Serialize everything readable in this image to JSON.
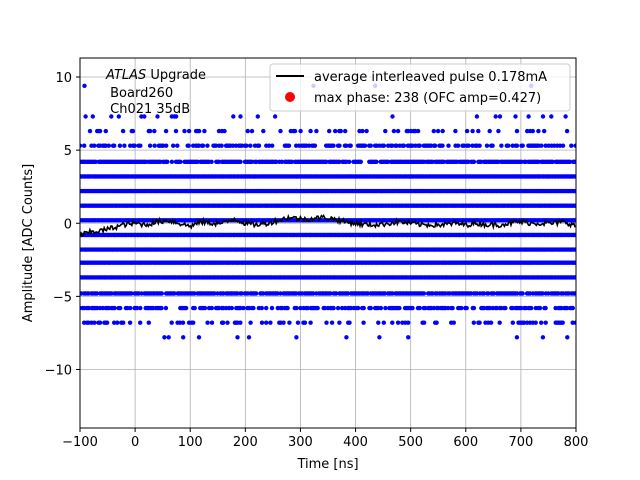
{
  "chart_data": {
    "type": "scatter",
    "title": "",
    "xlabel": "Time [ns]",
    "ylabel": "Amplitude [ADC Counts]",
    "xlim": [
      -100,
      800
    ],
    "ylim": [
      -14,
      11.3
    ],
    "xticks": [
      -100,
      0,
      100,
      200,
      300,
      400,
      500,
      600,
      700,
      800
    ],
    "yticks": [
      -10,
      -5,
      0,
      5,
      10
    ],
    "grid": true,
    "legend_position": "top-right",
    "annotation": {
      "line1_italic": "ATLAS",
      "line1_rest": " Upgrade",
      "line2": " Board260",
      "line3": " Ch021 35dB"
    },
    "series": [
      {
        "name": "average interleaved pulse 0.178mA",
        "kind": "line",
        "color": "#000000",
        "points": [
          [
            -100,
            -0.8
          ],
          [
            -80,
            -0.6
          ],
          [
            -60,
            -0.5
          ],
          [
            -40,
            -0.3
          ],
          [
            -20,
            -0.1
          ],
          [
            0,
            0.0
          ],
          [
            20,
            -0.1
          ],
          [
            40,
            0.1
          ],
          [
            60,
            0.2
          ],
          [
            80,
            0.0
          ],
          [
            100,
            -0.2
          ],
          [
            120,
            0.1
          ],
          [
            140,
            0.0
          ],
          [
            160,
            0.0
          ],
          [
            180,
            0.3
          ],
          [
            200,
            0.0
          ],
          [
            220,
            -0.1
          ],
          [
            240,
            0.0
          ],
          [
            260,
            0.2
          ],
          [
            280,
            0.4
          ],
          [
            300,
            0.3
          ],
          [
            320,
            0.3
          ],
          [
            340,
            0.4
          ],
          [
            360,
            0.3
          ],
          [
            380,
            0.1
          ],
          [
            400,
            0.0
          ],
          [
            420,
            -0.1
          ],
          [
            440,
            -0.1
          ],
          [
            460,
            0.0
          ],
          [
            480,
            0.1
          ],
          [
            500,
            0.0
          ],
          [
            520,
            -0.1
          ],
          [
            540,
            -0.1
          ],
          [
            560,
            -0.1
          ],
          [
            580,
            0.0
          ],
          [
            600,
            -0.1
          ],
          [
            620,
            0.0
          ],
          [
            640,
            -0.1
          ],
          [
            660,
            -0.1
          ],
          [
            680,
            0.0
          ],
          [
            700,
            0.1
          ],
          [
            720,
            0.0
          ],
          [
            740,
            0.0
          ],
          [
            760,
            0.0
          ],
          [
            780,
            0.1
          ],
          [
            800,
            -0.2
          ]
        ]
      },
      {
        "name": "max phase: 238 (OFC amp=0.427)",
        "kind": "marker",
        "color": "#ff0000",
        "points": []
      },
      {
        "name": "",
        "kind": "samples",
        "color": "#0000ff",
        "levels": [
          -7.8,
          -6.8,
          -5.8,
          -4.8,
          -3.7,
          -2.7,
          -1.8,
          -0.8,
          0.2,
          1.2,
          2.2,
          3.2,
          4.2,
          5.3,
          6.3,
          7.3,
          9.4
        ],
        "density": [
          0.04,
          0.25,
          0.55,
          0.85,
          1.0,
          1.0,
          1.0,
          1.0,
          1.0,
          1.0,
          1.0,
          1.0,
          0.85,
          0.45,
          0.18,
          0.04,
          0.01
        ]
      }
    ]
  }
}
